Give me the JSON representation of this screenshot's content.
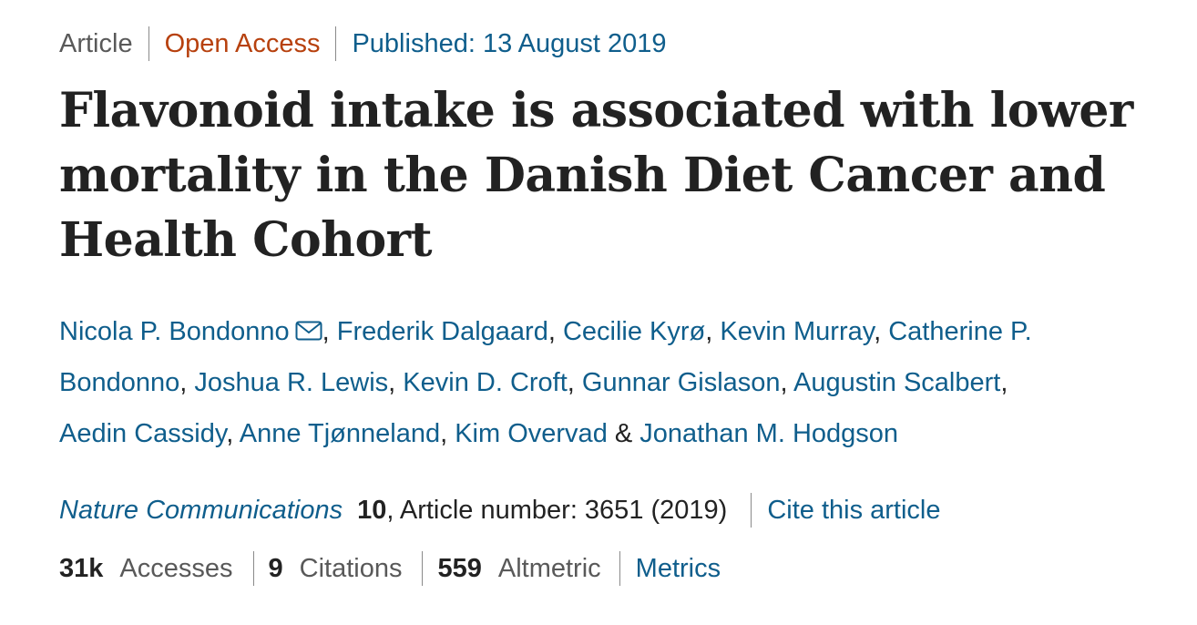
{
  "meta": {
    "type": "Article",
    "access": "Open Access",
    "published": "Published: 13 August 2019"
  },
  "title": "Flavonoid intake is associated with lower mortality in the Danish Diet Cancer and Health Cohort",
  "authors": [
    "Nicola P. Bondonno",
    "Frederik Dalgaard",
    "Cecilie Kyrø",
    "Kevin Murray",
    "Catherine P. Bondonno",
    "Joshua R. Lewis",
    "Kevin D. Croft",
    "Gunnar Gislason",
    "Augustin Scalbert",
    "Aedin Cassidy",
    "Anne Tjønneland",
    "Kim Overvad",
    "Jonathan M. Hodgson"
  ],
  "author_separators": {
    "comma": ", ",
    "ampersand": " & "
  },
  "contact_icon": "mail-icon",
  "journal": {
    "name": "Nature Communications",
    "volume": "10",
    "article_number": ", Article number: 3651 (2019)",
    "cite_label": "Cite this article"
  },
  "metrics": {
    "accesses_value": "31k",
    "accesses_label": "Accesses",
    "citations_value": "9",
    "citations_label": "Citations",
    "altmetric_value": "559",
    "altmetric_label": "Altmetric",
    "metrics_link": "Metrics"
  },
  "colors": {
    "link": "#0f5e8c",
    "open_access": "#b7410e",
    "text": "#222222",
    "muted": "#595959"
  }
}
